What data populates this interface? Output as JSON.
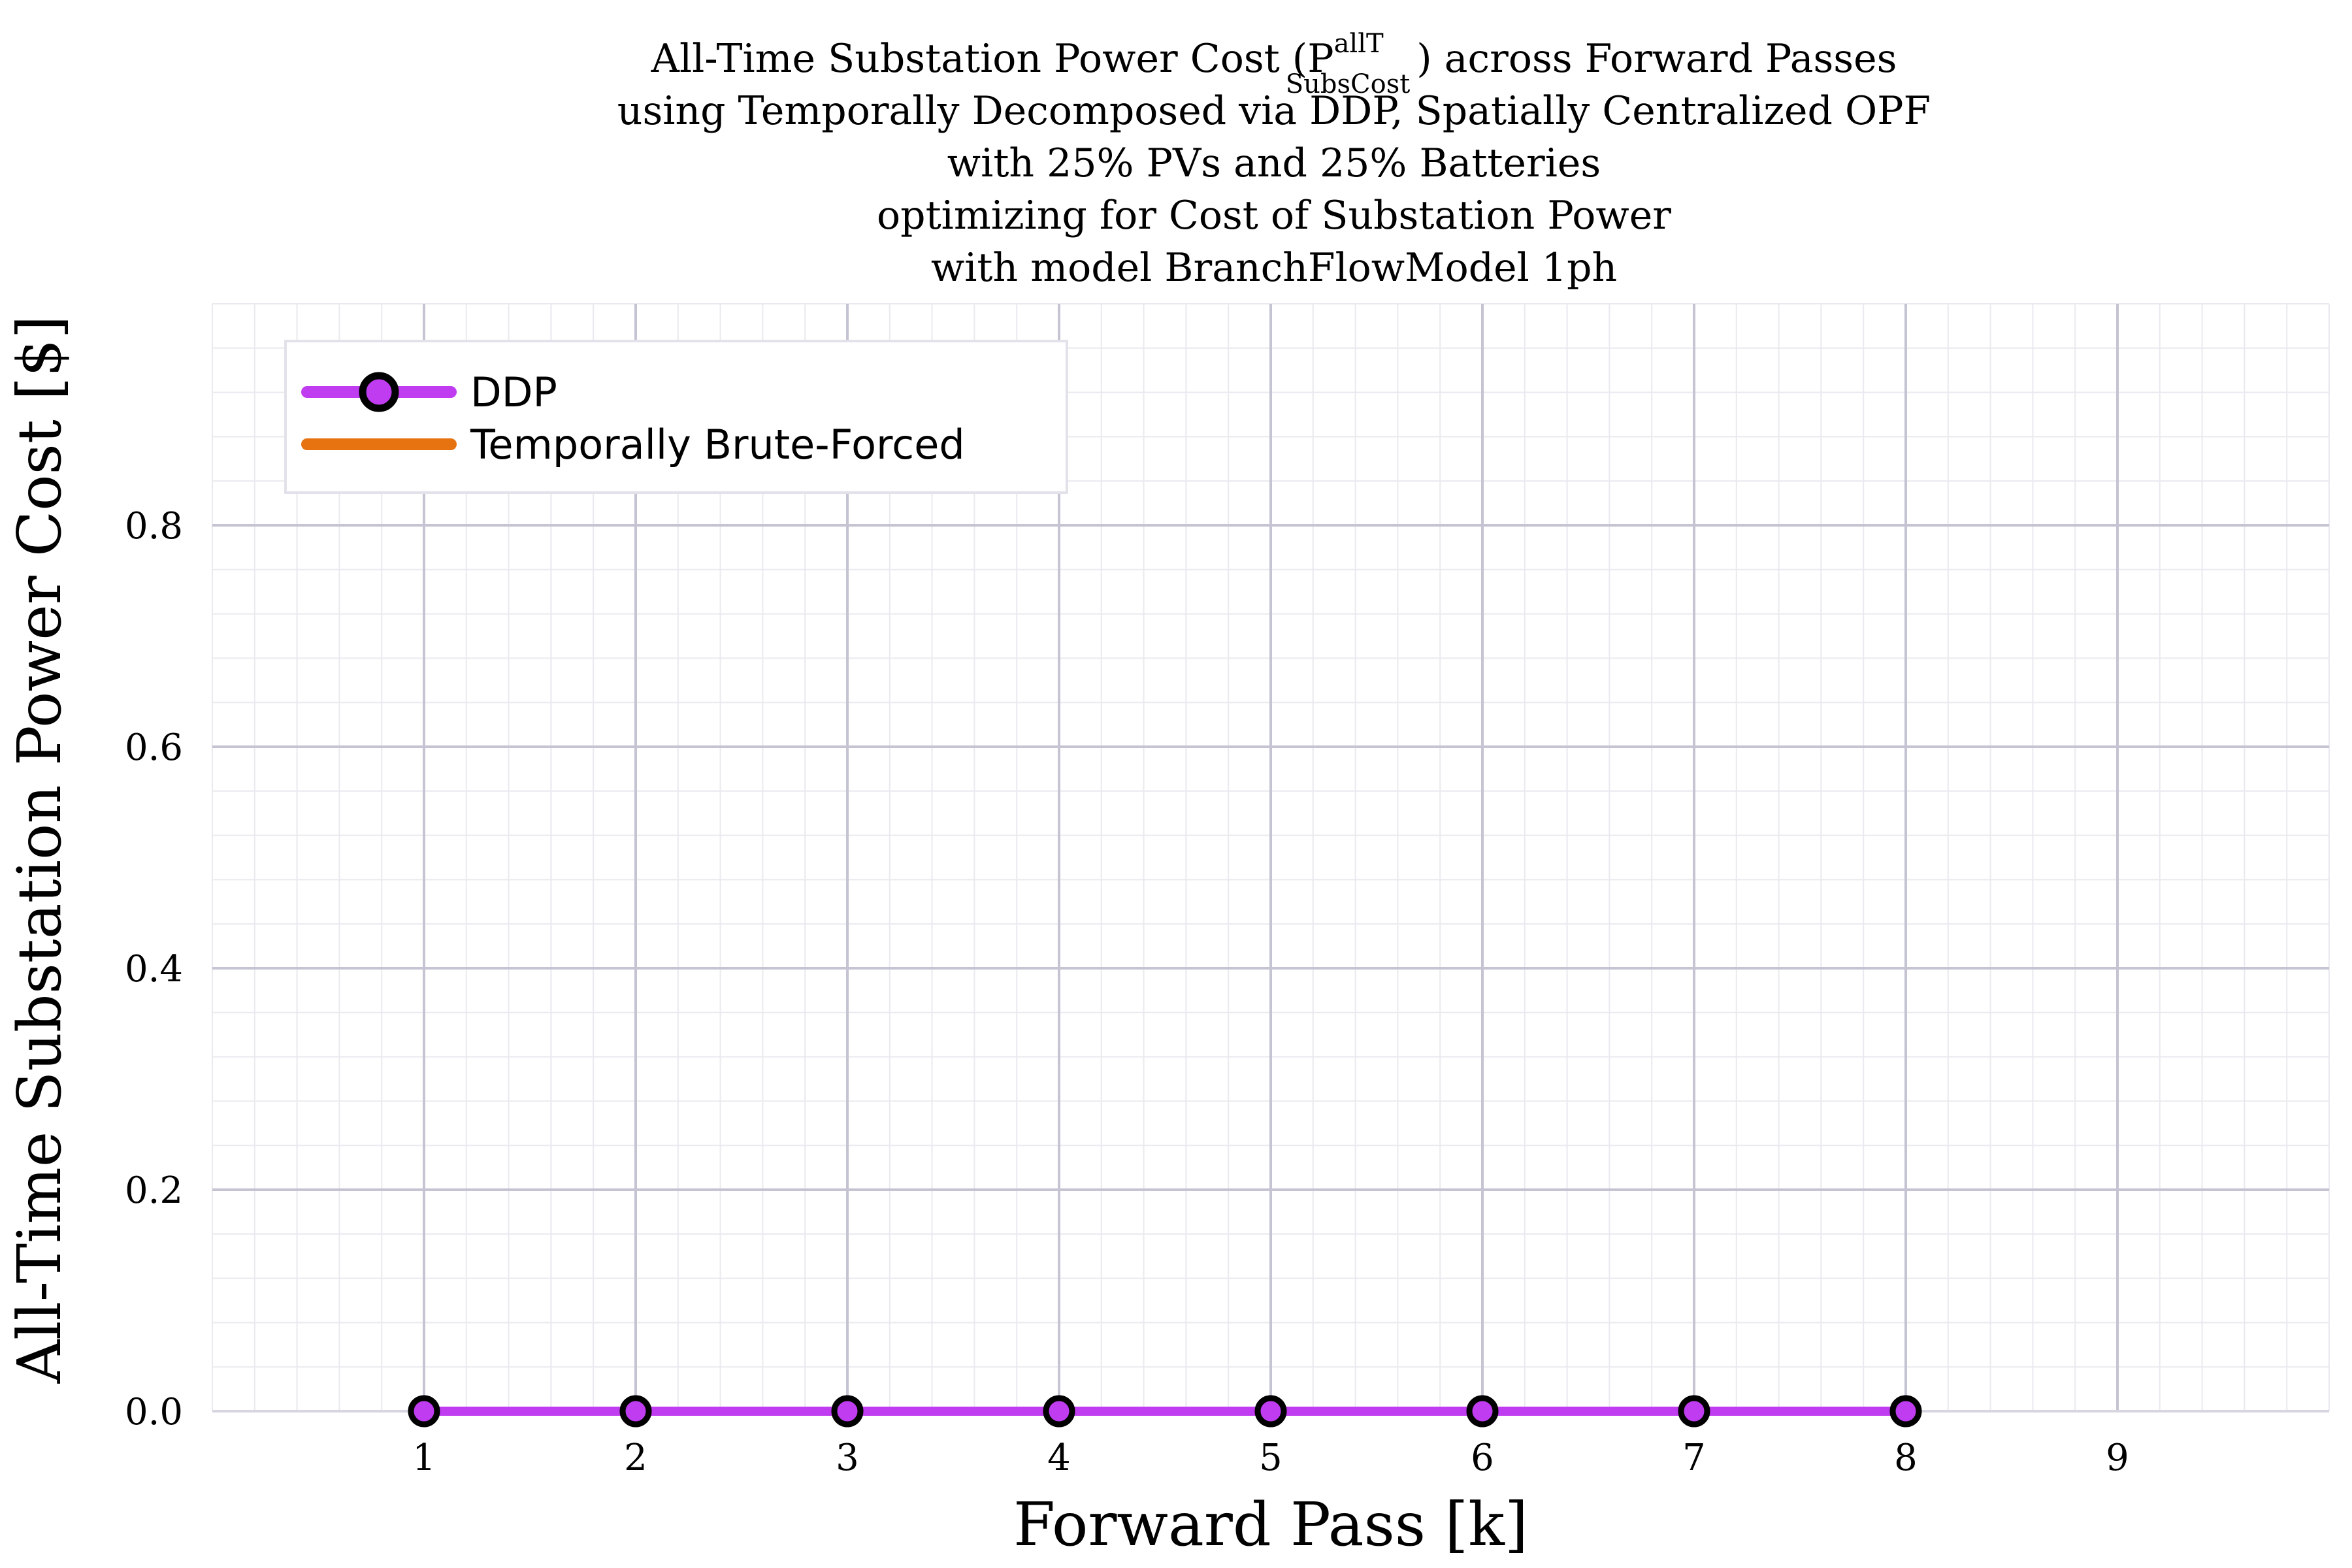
{
  "chart_data": {
    "type": "line",
    "title_lines": [
      "All-Time Substation Power Cost (P",
      "using Temporally Decomposed via DDP, Spatially Centralized OPF",
      "with 25% PVs and 25% Batteries",
      "optimizing for Cost of Substation Power",
      "with model BranchFlowModel 1ph"
    ],
    "title_math": {
      "superscript": "allT",
      "subscript": "SubsCost",
      "suffix": ") across Forward Passes"
    },
    "xlabel": "Forward Pass [k]",
    "ylabel": "All-Time Substation Power Cost [$]",
    "xlim": [
      0,
      10
    ],
    "ylim": [
      0,
      1
    ],
    "xticks": [
      1,
      2,
      3,
      4,
      5,
      6,
      7,
      8,
      9
    ],
    "xtick_labels": [
      "1",
      "2",
      "3",
      "4",
      "5",
      "6",
      "7",
      "8",
      "9"
    ],
    "yticks": [
      0.0,
      0.2,
      0.4,
      0.6,
      0.8
    ],
    "ytick_labels": [
      "0.0",
      "0.2",
      "0.4",
      "0.6",
      "0.8"
    ],
    "grid": true,
    "minor_grid": true,
    "legend_position": "top-left",
    "series": [
      {
        "name": "DDP",
        "color": "#c03cf0",
        "marker": "circle",
        "marker_edge": "#000000",
        "x": [
          1,
          2,
          3,
          4,
          5,
          6,
          7,
          8
        ],
        "y": [
          0,
          0,
          0,
          0,
          0,
          0,
          0,
          0
        ]
      },
      {
        "name": "Temporally Brute-Forced",
        "color": "#e6730f",
        "marker": "none",
        "x": [],
        "y": []
      }
    ]
  }
}
